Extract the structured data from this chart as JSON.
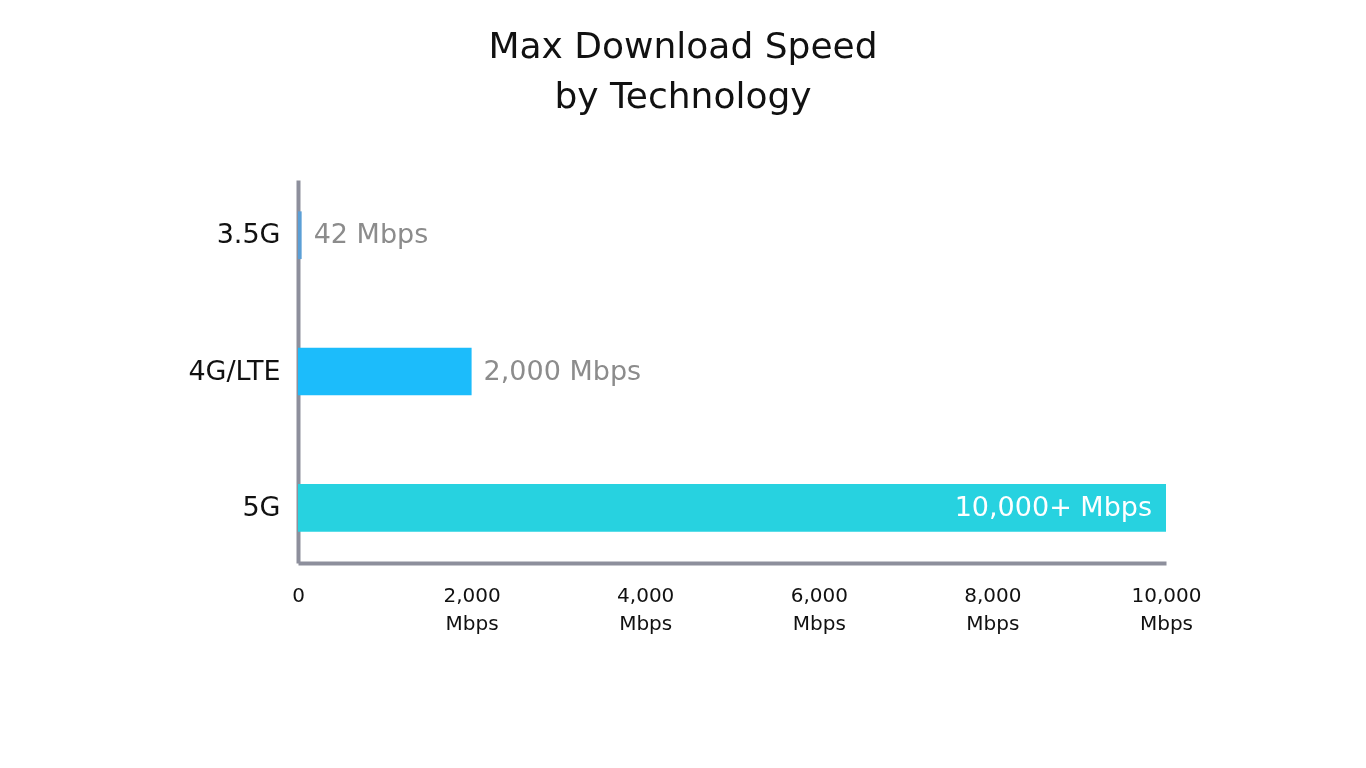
{
  "chart_data": {
    "type": "bar",
    "orientation": "horizontal",
    "title": "Max Download Speed by Technology",
    "categories": [
      "3.5G",
      "4G/LTE",
      "5G"
    ],
    "values": [
      42,
      2000,
      10000
    ],
    "colors": [
      "#5b9fd6",
      "#1cbcfb",
      "#27d2e0"
    ],
    "value_labels": [
      "42 Mbps",
      "2,000 Mbps",
      "10,000+ Mbps"
    ],
    "xlim": [
      0,
      10000
    ],
    "xticks": [
      0,
      {
        "value": 2000,
        "label": "2,000 Mbps"
      },
      {
        "value": 4000,
        "label": "4,000 Mbps"
      },
      {
        "value": 6000,
        "label": "6,000 Mbps"
      },
      {
        "value": 8000,
        "label": "8,000 Mbps"
      },
      {
        "value": 10000,
        "label": "10,000 Mbps"
      }
    ],
    "grid": false
  }
}
